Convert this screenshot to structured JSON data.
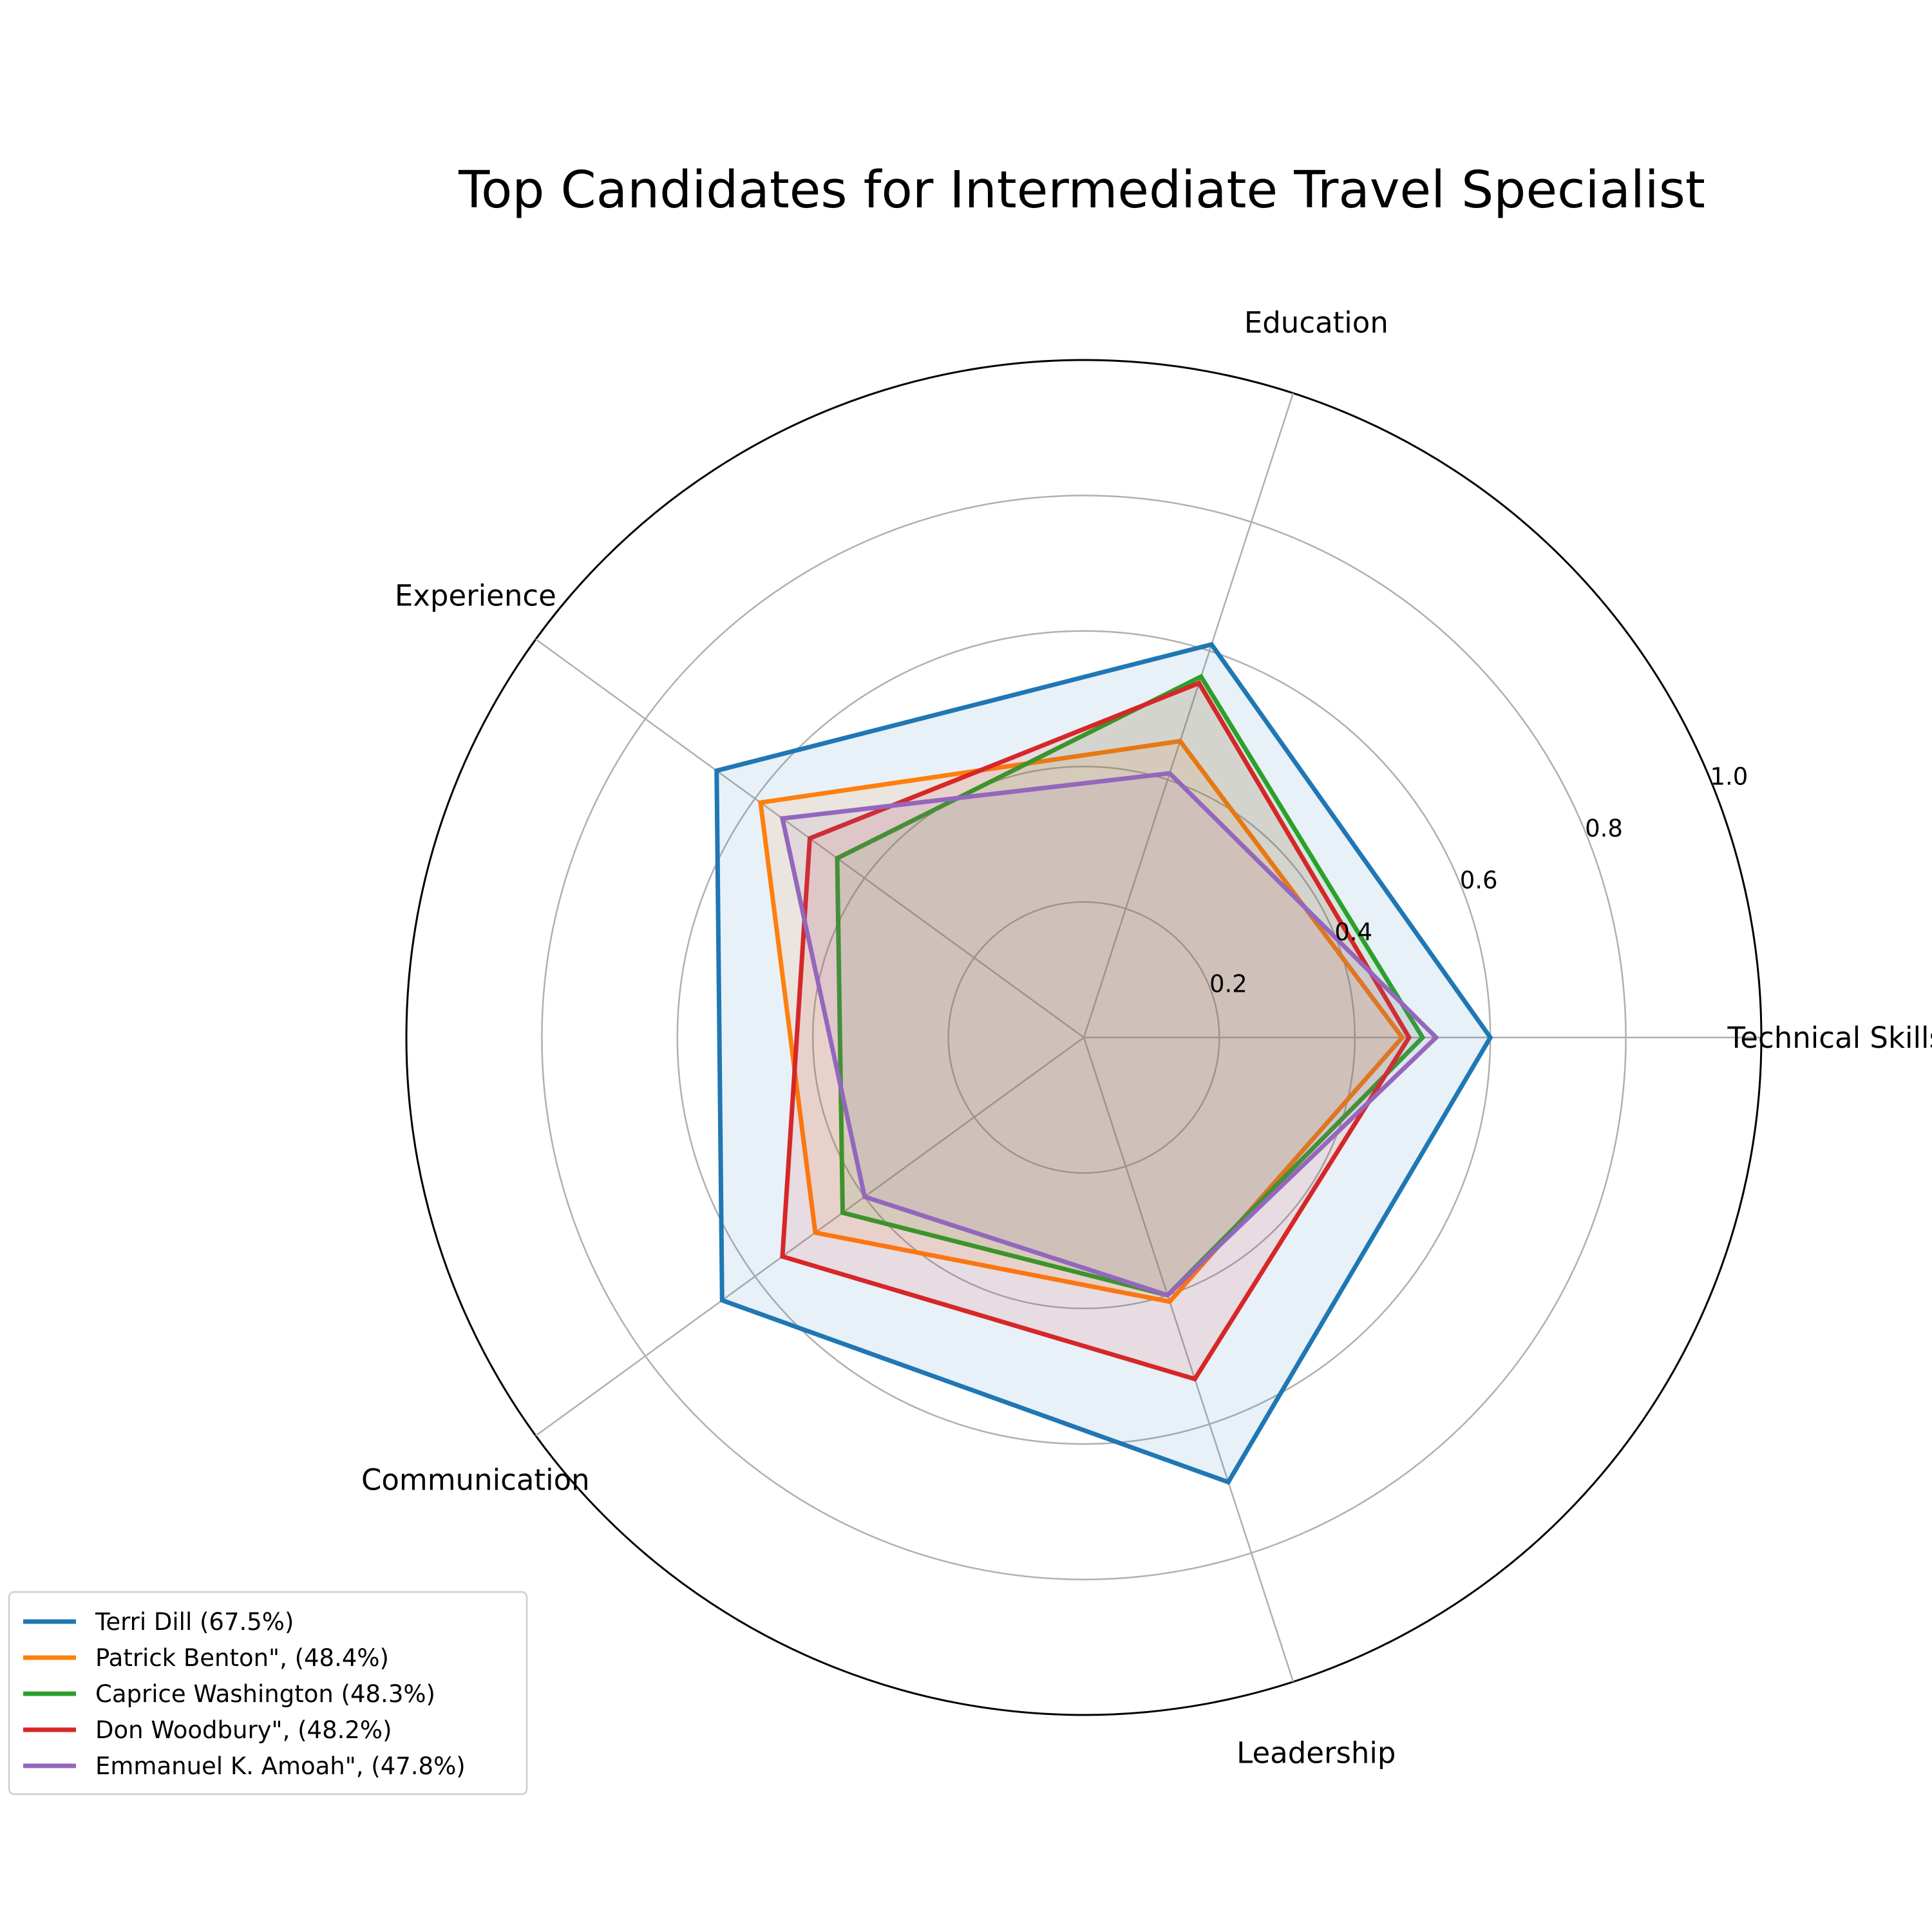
{
  "chart_data": {
    "type": "radar",
    "title": "Top Candidates for Intermediate Travel Specialist",
    "axes": [
      "Technical Skills",
      "Education",
      "Experience",
      "Communication",
      "Leadership"
    ],
    "rlim": [
      0,
      1.0
    ],
    "rticks": [
      0.2,
      0.4,
      0.6,
      0.8,
      1.0
    ],
    "rtick_labels": [
      "0.2",
      "0.4",
      "0.6",
      "0.8",
      "1.0"
    ],
    "grid": true,
    "legend_position": "lower-left",
    "series": [
      {
        "name": "Terri Dill (67.5%)",
        "color": "#1f77b4",
        "values": [
          0.6,
          0.61,
          0.67,
          0.66,
          0.69
        ]
      },
      {
        "name": "Patrick Benton\", (48.4%)",
        "color": "#ff7f0e",
        "values": [
          0.47,
          0.46,
          0.59,
          0.49,
          0.41
        ]
      },
      {
        "name": "Caprice Washington (48.3%)",
        "color": "#2ca02c",
        "values": [
          0.5,
          0.56,
          0.45,
          0.44,
          0.4
        ]
      },
      {
        "name": "Don Woodbury\", (48.2%)",
        "color": "#d62728",
        "values": [
          0.48,
          0.55,
          0.5,
          0.55,
          0.53
        ]
      },
      {
        "name": "Emmanuel K. Amoah\", (47.8%)",
        "color": "#9467bd",
        "values": [
          0.52,
          0.41,
          0.55,
          0.4,
          0.4
        ]
      }
    ]
  }
}
